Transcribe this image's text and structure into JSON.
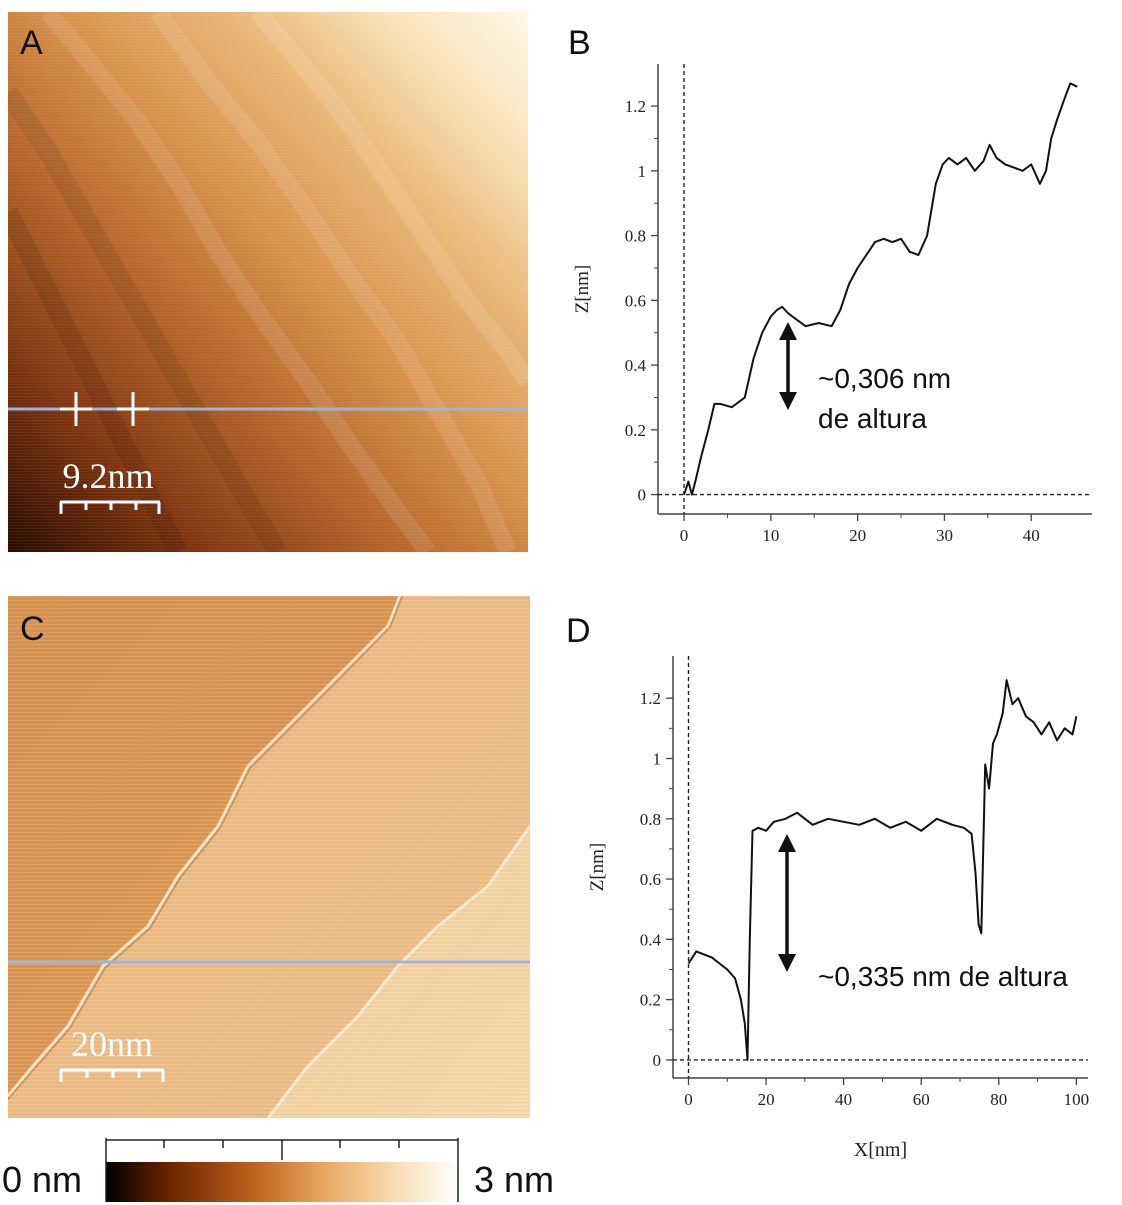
{
  "panels": {
    "A": {
      "letter": "A",
      "scale_bar_label": "9.2nm",
      "line_profile": "horizontal",
      "colors": {
        "dark": "#3a1200",
        "mid": "#c8772e",
        "light": "#fff3dd",
        "line": "#9ab6e0"
      }
    },
    "B": {
      "letter": "B",
      "ylabel": "Z[nm]",
      "annotation": [
        "~0,306 nm",
        "de altura"
      ]
    },
    "C": {
      "letter": "C",
      "scale_bar_label": "20nm",
      "line_profile": "horizontal",
      "colors": {
        "mid": "#e3a567",
        "light": "#f3cf9c",
        "line": "#9ab6e0"
      }
    },
    "D": {
      "letter": "D",
      "ylabel": "Z[nm]",
      "xlabel": "X[nm]",
      "annotation": [
        "~0,335 nm de altura"
      ]
    }
  },
  "colorbar": {
    "min_label": "0 nm",
    "max_label": "3 nm",
    "colors": [
      "#000000",
      "#6b2400",
      "#c0611e",
      "#e8a862",
      "#f7dcb2",
      "#ffffff"
    ]
  },
  "chart_data": [
    {
      "type": "line",
      "panel": "B",
      "xlabel": "",
      "ylabel": "Z[nm]",
      "xlim": [
        -3,
        47
      ],
      "ylim": [
        -0.06,
        1.33
      ],
      "xticks": [
        0,
        10,
        20,
        30,
        40
      ],
      "yticks": [
        0,
        0.2,
        0.4,
        0.6,
        0.8,
        1,
        1.2
      ],
      "ytick_labels": [
        "0",
        "0.2",
        "0.4",
        "0.6",
        "0.8",
        "1",
        "1.2"
      ],
      "x": [
        0,
        0.5,
        0.9,
        1.3,
        2.0,
        2.8,
        3.5,
        4.2,
        5.5,
        7.0,
        8.0,
        9.0,
        10.0,
        10.7,
        11.3,
        12.0,
        13.0,
        14.0,
        15.5,
        17.0,
        18.0,
        19.0,
        20.0,
        21.0,
        22.0,
        23.0,
        24.0,
        25.0,
        26.0,
        27.0,
        28.0,
        29.0,
        29.8,
        30.5,
        31.5,
        32.5,
        33.5,
        34.5,
        35.2,
        36.0,
        37.0,
        38.0,
        39.0,
        40.0,
        41.0,
        41.7,
        42.3,
        43.0,
        43.8,
        44.5,
        45.3
      ],
      "y": [
        0.0,
        0.04,
        0.0,
        0.04,
        0.12,
        0.2,
        0.28,
        0.28,
        0.27,
        0.3,
        0.42,
        0.5,
        0.55,
        0.57,
        0.58,
        0.56,
        0.54,
        0.52,
        0.53,
        0.52,
        0.57,
        0.65,
        0.7,
        0.74,
        0.78,
        0.79,
        0.78,
        0.79,
        0.75,
        0.74,
        0.8,
        0.96,
        1.02,
        1.04,
        1.02,
        1.04,
        1.0,
        1.03,
        1.08,
        1.04,
        1.02,
        1.01,
        1.0,
        1.02,
        0.96,
        1.0,
        1.1,
        1.16,
        1.22,
        1.27,
        1.26
      ]
    },
    {
      "type": "line",
      "panel": "D",
      "xlabel": "X[nm]",
      "ylabel": "Z[nm]",
      "xlim": [
        -4,
        103
      ],
      "ylim": [
        -0.06,
        1.34
      ],
      "xticks": [
        0,
        20,
        40,
        60,
        80,
        100
      ],
      "yticks": [
        0,
        0.2,
        0.4,
        0.6,
        0.8,
        1,
        1.2
      ],
      "ytick_labels": [
        "0",
        "0.2",
        "0.4",
        "0.6",
        "0.8",
        "1",
        "1.2"
      ],
      "x": [
        0,
        2,
        4,
        6,
        8,
        10,
        12,
        13.5,
        14.5,
        15.2,
        15.8,
        16.5,
        18,
        20,
        22,
        25,
        28,
        32,
        36,
        40,
        44,
        48,
        52,
        56,
        60,
        64,
        68,
        71,
        73,
        74,
        74.8,
        75.5,
        76.5,
        77.5,
        78.5,
        79.5,
        81,
        82,
        83.5,
        85,
        87,
        89,
        91,
        93,
        95,
        97,
        99,
        100
      ],
      "y": [
        0.32,
        0.36,
        0.35,
        0.34,
        0.32,
        0.3,
        0.27,
        0.2,
        0.12,
        0.0,
        0.4,
        0.76,
        0.77,
        0.76,
        0.79,
        0.8,
        0.82,
        0.78,
        0.8,
        0.79,
        0.78,
        0.8,
        0.77,
        0.79,
        0.76,
        0.8,
        0.78,
        0.77,
        0.75,
        0.62,
        0.45,
        0.42,
        0.98,
        0.9,
        1.05,
        1.08,
        1.15,
        1.26,
        1.18,
        1.2,
        1.14,
        1.12,
        1.08,
        1.12,
        1.06,
        1.1,
        1.08,
        1.14
      ]
    }
  ]
}
